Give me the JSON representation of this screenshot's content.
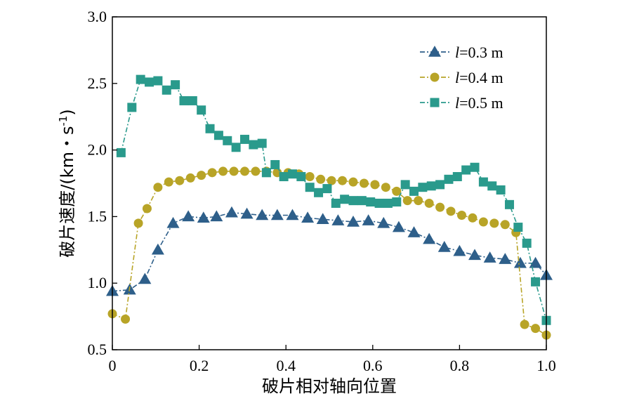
{
  "chart_data": {
    "type": "line",
    "xlabel": "破片相对轴向位置",
    "ylabel_main": "破片速度/(km・s",
    "ylabel_sup": "-1",
    "ylabel_close": ")",
    "xlim": [
      0,
      1.0
    ],
    "ylim": [
      0.5,
      3.0
    ],
    "xticks": [
      0,
      0.2,
      0.4,
      0.6,
      0.8,
      1.0
    ],
    "xtick_labels": [
      "0",
      "0.2",
      "0.4",
      "0.6",
      "0.8",
      "1.0"
    ],
    "yticks": [
      0.5,
      1.0,
      1.5,
      2.0,
      2.5,
      3.0
    ],
    "ytick_labels": [
      "0.5",
      "1.0",
      "1.5",
      "2.0",
      "2.5",
      "3.0"
    ],
    "grid": false,
    "legend_position": "top-right",
    "series": [
      {
        "name_prefix": "l",
        "name_suffix": "=0.3 m",
        "color": "#2e5f8a",
        "marker": "triangle",
        "x": [
          0.0,
          0.04,
          0.075,
          0.105,
          0.14,
          0.175,
          0.21,
          0.24,
          0.275,
          0.31,
          0.345,
          0.38,
          0.415,
          0.45,
          0.485,
          0.52,
          0.555,
          0.59,
          0.625,
          0.66,
          0.695,
          0.73,
          0.765,
          0.8,
          0.835,
          0.87,
          0.905,
          0.94,
          0.975,
          1.0
        ],
        "y": [
          0.94,
          0.95,
          1.03,
          1.25,
          1.45,
          1.5,
          1.49,
          1.5,
          1.53,
          1.52,
          1.51,
          1.51,
          1.51,
          1.49,
          1.48,
          1.47,
          1.46,
          1.47,
          1.45,
          1.42,
          1.38,
          1.33,
          1.27,
          1.24,
          1.21,
          1.19,
          1.18,
          1.15,
          1.15,
          1.06
        ]
      },
      {
        "name_prefix": "l",
        "name_suffix": "=0.4 m",
        "color": "#b8a427",
        "marker": "circle",
        "x": [
          0.0,
          0.03,
          0.06,
          0.08,
          0.105,
          0.13,
          0.155,
          0.18,
          0.205,
          0.23,
          0.255,
          0.28,
          0.305,
          0.33,
          0.355,
          0.38,
          0.405,
          0.43,
          0.455,
          0.48,
          0.505,
          0.53,
          0.555,
          0.58,
          0.605,
          0.63,
          0.655,
          0.68,
          0.705,
          0.73,
          0.755,
          0.78,
          0.805,
          0.83,
          0.855,
          0.88,
          0.905,
          0.93,
          0.95,
          0.975,
          1.0
        ],
        "y": [
          0.77,
          0.73,
          1.45,
          1.56,
          1.72,
          1.76,
          1.77,
          1.79,
          1.81,
          1.83,
          1.84,
          1.84,
          1.84,
          1.84,
          1.84,
          1.83,
          1.83,
          1.82,
          1.8,
          1.78,
          1.77,
          1.77,
          1.76,
          1.75,
          1.74,
          1.72,
          1.69,
          1.62,
          1.62,
          1.6,
          1.57,
          1.54,
          1.51,
          1.49,
          1.46,
          1.45,
          1.44,
          1.38,
          0.69,
          0.66,
          0.61
        ]
      },
      {
        "name_prefix": "l",
        "name_suffix": "=0.5 m",
        "color": "#2a9a8c",
        "marker": "square",
        "x": [
          0.02,
          0.045,
          0.065,
          0.085,
          0.105,
          0.125,
          0.145,
          0.165,
          0.185,
          0.205,
          0.225,
          0.245,
          0.265,
          0.285,
          0.305,
          0.325,
          0.345,
          0.355,
          0.375,
          0.395,
          0.415,
          0.435,
          0.455,
          0.475,
          0.495,
          0.515,
          0.535,
          0.555,
          0.575,
          0.595,
          0.615,
          0.635,
          0.655,
          0.675,
          0.695,
          0.715,
          0.735,
          0.755,
          0.775,
          0.795,
          0.815,
          0.835,
          0.855,
          0.875,
          0.895,
          0.915,
          0.935,
          0.955,
          0.975,
          1.0
        ],
        "y": [
          1.98,
          2.32,
          2.53,
          2.51,
          2.52,
          2.45,
          2.49,
          2.37,
          2.37,
          2.3,
          2.16,
          2.11,
          2.07,
          2.02,
          2.08,
          2.04,
          2.05,
          1.83,
          1.89,
          1.8,
          1.82,
          1.8,
          1.72,
          1.68,
          1.71,
          1.6,
          1.63,
          1.62,
          1.62,
          1.61,
          1.6,
          1.6,
          1.61,
          1.74,
          1.69,
          1.72,
          1.73,
          1.74,
          1.78,
          1.8,
          1.85,
          1.87,
          1.76,
          1.73,
          1.7,
          1.59,
          1.42,
          1.3,
          1.01,
          0.72
        ]
      }
    ]
  }
}
